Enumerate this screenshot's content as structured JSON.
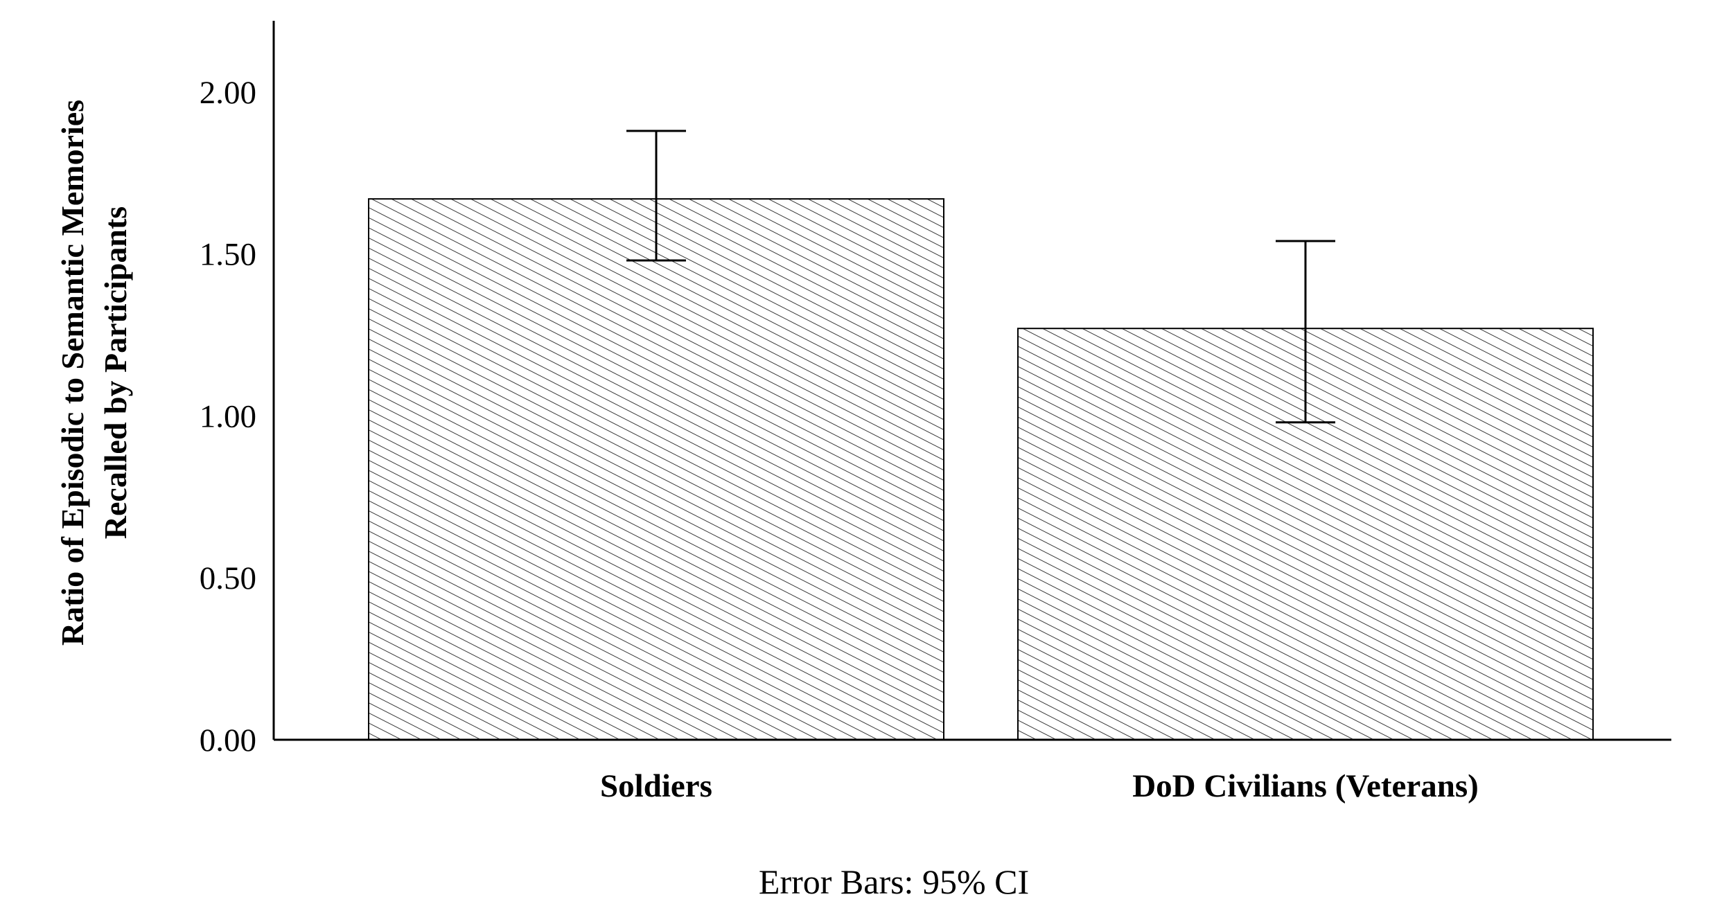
{
  "chart_data": {
    "type": "bar",
    "categories": [
      "Soldiers",
      "DoD Civilians (Veterans)"
    ],
    "values": [
      1.67,
      1.27
    ],
    "error_bars": [
      {
        "lower": 1.48,
        "upper": 1.88
      },
      {
        "lower": 0.98,
        "upper": 1.54
      }
    ],
    "ylabel_lines": [
      "Ratio of Episodic to Semantic Memories",
      "Recalled by Participants"
    ],
    "xlabel": "",
    "yticks": [
      0.0,
      0.5,
      1.0,
      1.5,
      2.0
    ],
    "ytick_labels": [
      "0.00",
      "0.50",
      "1.00",
      "1.50",
      "2.00"
    ],
    "ylim": [
      0,
      2.22
    ],
    "footnote": "Error Bars: 95% CI",
    "grid": false,
    "fill_pattern": "diagonal-hatch",
    "colors": {
      "stroke": "#000000",
      "background": "#ffffff",
      "hatch": "#3a3a3a"
    }
  }
}
